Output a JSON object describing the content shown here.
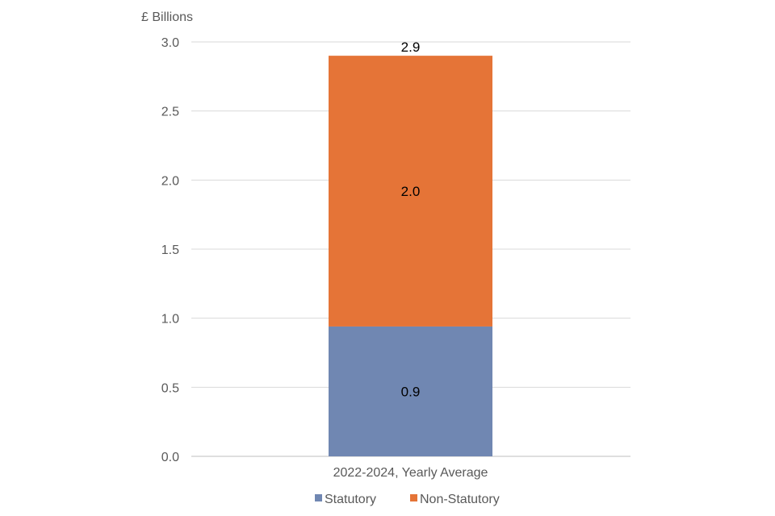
{
  "chart_data": {
    "type": "bar",
    "stacked": true,
    "ylabel": "£ Billions",
    "categories": [
      "2022-2024, Yearly Average"
    ],
    "ylim": [
      0,
      3.0
    ],
    "yticks": [
      "0.0",
      "0.5",
      "1.0",
      "1.5",
      "2.0",
      "2.5",
      "3.0"
    ],
    "ytick_values": [
      0,
      0.5,
      1.0,
      1.5,
      2.0,
      2.5,
      3.0
    ],
    "grid": true,
    "legend_position": "bottom",
    "series": [
      {
        "name": "Statutory",
        "values": [
          0.94
        ],
        "label": "0.9",
        "color": "#7087b2"
      },
      {
        "name": "Non-Statutory",
        "values": [
          1.96
        ],
        "label": "2.0",
        "color": "#e57437"
      }
    ],
    "total_label": "2.9"
  }
}
